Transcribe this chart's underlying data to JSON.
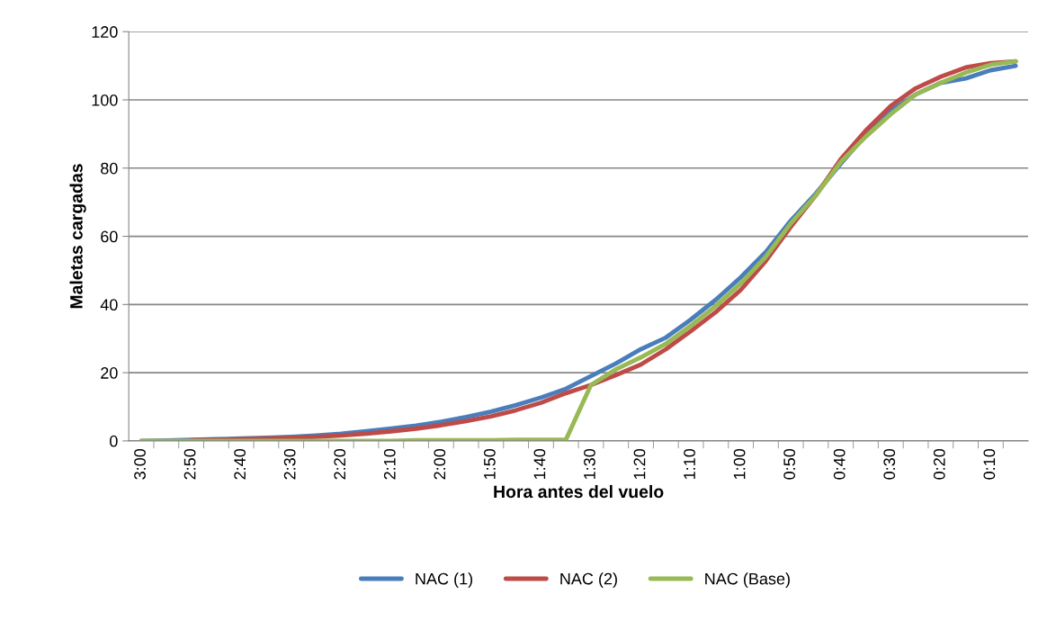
{
  "chart_data": {
    "type": "line",
    "xlabel": "Hora antes del vuelo",
    "ylabel": "Maletas cargadas",
    "categories": [
      "3:00",
      null,
      "2:50",
      null,
      "2:40",
      null,
      "2:30",
      null,
      "2:20",
      null,
      "2:10",
      null,
      "2:00",
      null,
      "1:50",
      null,
      "1:40",
      null,
      "1:30",
      null,
      "1:20",
      null,
      "1:10",
      null,
      "1:00",
      null,
      "0:50",
      null,
      "0:40",
      null,
      "0:30",
      null,
      "0:20",
      null,
      "0:10",
      null
    ],
    "series": [
      {
        "name": "NAC (1)",
        "color": "#4a7ebb",
        "values": [
          0,
          0.1,
          0.3,
          0.5,
          0.7,
          0.9,
          1.2,
          1.6,
          2.1,
          2.8,
          3.6,
          4.5,
          5.6,
          7,
          8.6,
          10.5,
          12.7,
          15.3,
          19,
          22.7,
          26.9,
          30.3,
          35.6,
          41.4,
          48,
          55.4,
          64.6,
          72.5,
          81.3,
          89.7,
          96.8,
          101.6,
          105,
          106.3,
          108.7,
          110
        ]
      },
      {
        "name": "NAC (2)",
        "color": "#be4b48",
        "values": [
          null,
          null,
          0.2,
          0.3,
          0.5,
          0.7,
          0.9,
          1.2,
          1.6,
          2.1,
          2.8,
          3.6,
          4.6,
          5.8,
          7.2,
          9,
          11.2,
          14,
          16.4,
          19.3,
          22.4,
          26.9,
          32.2,
          37.8,
          44.3,
          52.8,
          62.8,
          72,
          82.6,
          91,
          98.2,
          103.4,
          106.8,
          109.5,
          110.8,
          111.3
        ]
      },
      {
        "name": "NAC (Base)",
        "color": "#98b954",
        "values": [
          0,
          0,
          0,
          0,
          0,
          0,
          0,
          0,
          0,
          0,
          0,
          0.2,
          0.2,
          0.2,
          0.2,
          0.3,
          0.3,
          0.4,
          16.4,
          21,
          24.5,
          28.5,
          33.8,
          39.6,
          46.2,
          54,
          63.8,
          72,
          81.8,
          89.2,
          95.8,
          101.6,
          105,
          108,
          110.3,
          111.3
        ]
      }
    ],
    "ylim": [
      0,
      120
    ],
    "yticks": [
      0,
      20,
      40,
      60,
      80,
      100,
      120
    ],
    "grid": "y",
    "legend": "bottom",
    "marker": "none",
    "line_style": "solid"
  }
}
